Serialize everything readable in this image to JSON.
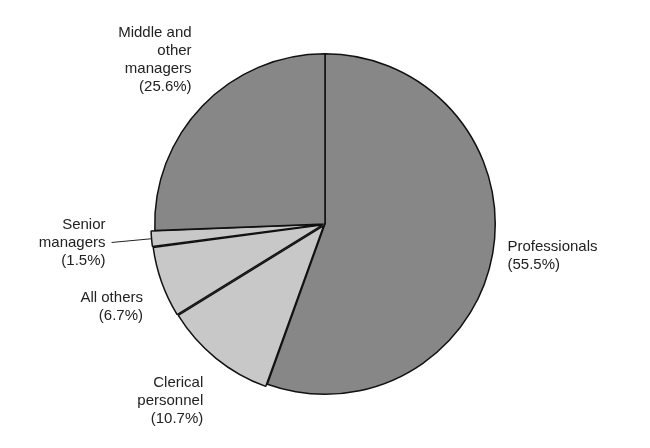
{
  "chart_data": {
    "type": "pie",
    "categories": [
      "Professionals",
      "Clerical personnel",
      "All others",
      "Senior managers",
      "Middle and other managers"
    ],
    "values": [
      55.5,
      10.7,
      6.7,
      1.5,
      25.6
    ],
    "value_labels": [
      "(55.5%)",
      "(10.7%)",
      "(6.7%)",
      "(1.5%)",
      "(25.6%)"
    ],
    "colors": [
      "#878787",
      "#c8c8c8",
      "#c8c8c8",
      "#c8c8c8",
      "#878787"
    ],
    "data_labels": true
  }
}
